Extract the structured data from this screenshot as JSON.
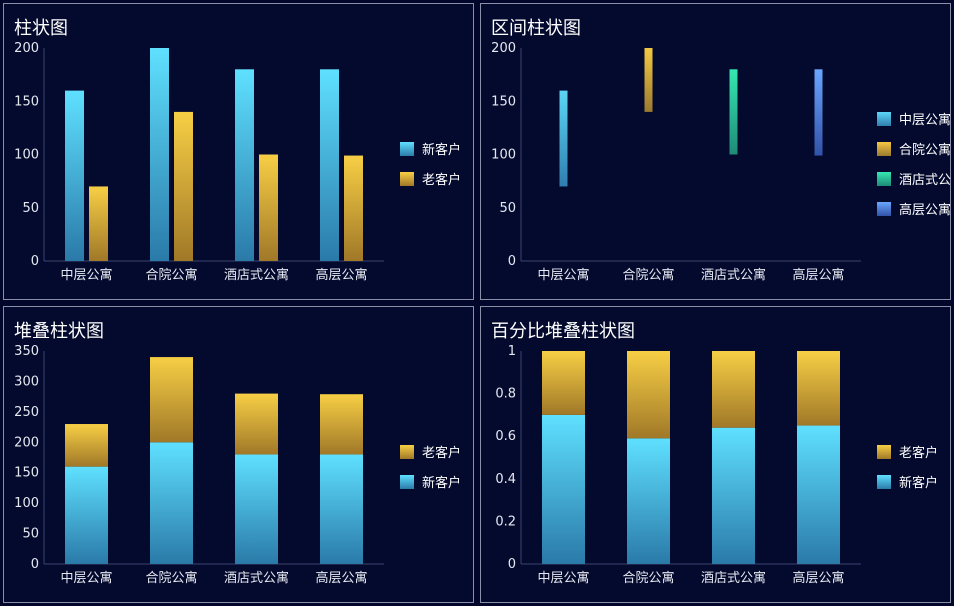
{
  "colors": {
    "new_top": "#5fe0ff",
    "new_bot": "#2a7aa8",
    "old_top": "#f7cf45",
    "old_bot": "#a07828",
    "c1_top": "#5cd6f5",
    "c1_bot": "#2f7eb0",
    "c2_top": "#f4c842",
    "c2_bot": "#9a7a30",
    "c3_top": "#35e8b0",
    "c3_bot": "#1f8a78",
    "c4_top": "#6aa6ff",
    "c4_bot": "#3152a8"
  },
  "chart_data": [
    {
      "title": "柱状图",
      "type": "bar",
      "categories": [
        "中层公寓",
        "合院公寓",
        "酒店式公寓",
        "高层公寓"
      ],
      "series": [
        {
          "name": "新客户",
          "values": [
            160,
            200,
            180,
            180
          ],
          "color": "new"
        },
        {
          "name": "老客户",
          "values": [
            70,
            140,
            100,
            99
          ],
          "color": "old"
        }
      ],
      "ylim": [
        0,
        200
      ],
      "yticks": [
        "0",
        "50",
        "100",
        "150",
        "200"
      ],
      "legend": "right"
    },
    {
      "title": "区间柱状图",
      "type": "bar",
      "categories": [
        "中层公寓",
        "合院公寓",
        "酒店式公寓",
        "高层公寓"
      ],
      "ranges": [
        [
          70,
          160
        ],
        [
          140,
          200
        ],
        [
          100,
          180
        ],
        [
          99,
          180
        ]
      ],
      "legend_items": [
        {
          "name": "中层公寓",
          "color": "c1"
        },
        {
          "name": "合院公寓",
          "color": "c2"
        },
        {
          "name": "酒店式公寓",
          "color": "c3"
        },
        {
          "name": "高层公寓",
          "color": "c4"
        }
      ],
      "ylim": [
        0,
        200
      ],
      "yticks": [
        "0",
        "50",
        "100",
        "150",
        "200"
      ],
      "legend": "right"
    },
    {
      "title": "堆叠柱状图",
      "type": "bar",
      "categories": [
        "中层公寓",
        "合院公寓",
        "酒店式公寓",
        "高层公寓"
      ],
      "series": [
        {
          "name": "新客户",
          "values": [
            160,
            200,
            180,
            180
          ],
          "color": "new"
        },
        {
          "name": "老客户",
          "values": [
            70,
            140,
            100,
            99
          ],
          "color": "old"
        }
      ],
      "legend_order": [
        "老客户",
        "新客户"
      ],
      "ylim": [
        0,
        350
      ],
      "yticks": [
        "0",
        "50",
        "100",
        "150",
        "200",
        "250",
        "300",
        "350"
      ],
      "legend": "right"
    },
    {
      "title": "百分比堆叠柱状图",
      "type": "bar",
      "categories": [
        "中层公寓",
        "合院公寓",
        "酒店式公寓",
        "高层公寓"
      ],
      "series": [
        {
          "name": "新客户",
          "values": [
            0.7,
            0.59,
            0.64,
            0.65
          ],
          "color": "new"
        },
        {
          "name": "老客户",
          "values": [
            0.3,
            0.41,
            0.36,
            0.35
          ],
          "color": "old"
        }
      ],
      "legend_order": [
        "老客户",
        "新客户"
      ],
      "ylim": [
        0,
        1
      ],
      "yticks": [
        "0",
        "0.2",
        "0.4",
        "0.6",
        "0.8",
        "1"
      ],
      "legend": "right"
    }
  ]
}
